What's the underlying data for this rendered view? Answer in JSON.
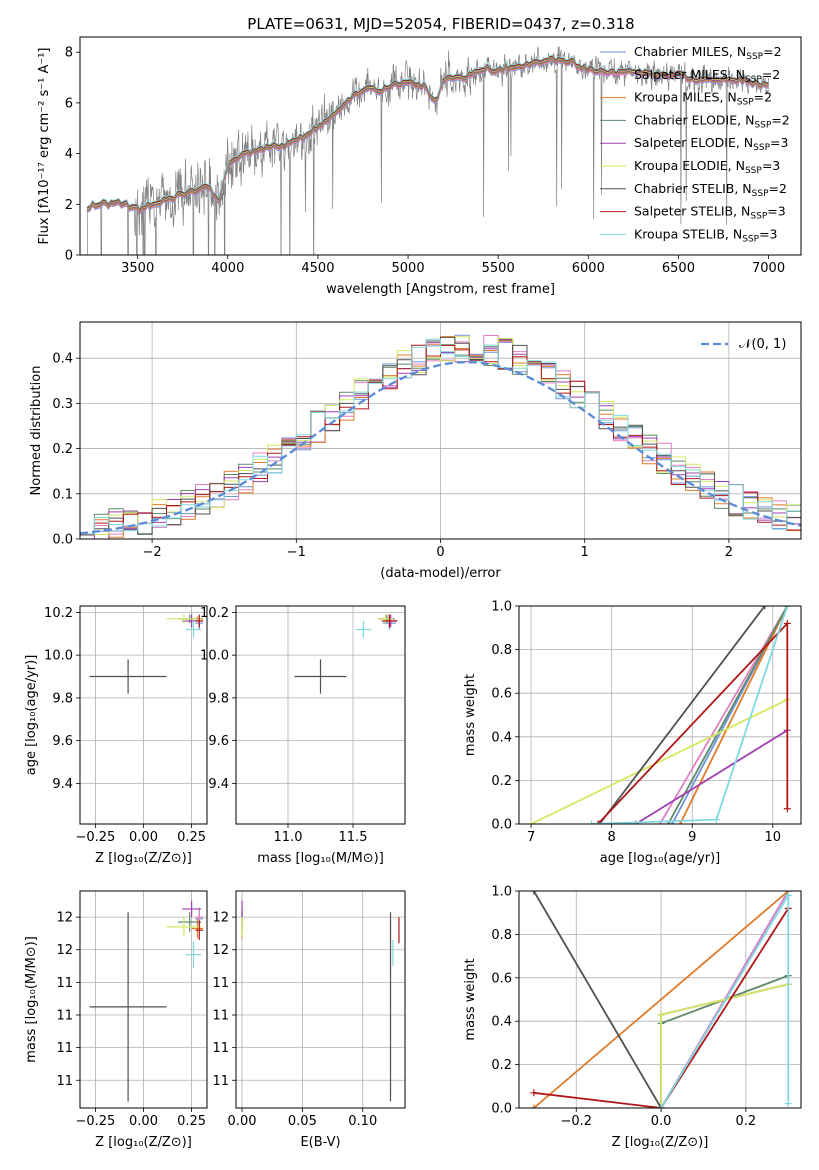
{
  "figure_title": "PLATE=0631, MJD=52054, FIBERID=0437, z=0.318",
  "chart_data": [
    {
      "id": "spectrum",
      "type": "line",
      "xlabel": "wavelength [Angstrom, rest frame]",
      "ylabel": "Flux [fλ10⁻¹⁷ erg cm⁻² s⁻¹ A⁻¹]",
      "xlim": [
        3180,
        7180
      ],
      "ylim": [
        0,
        8.6
      ],
      "xticks": [
        3500,
        4000,
        4500,
        5000,
        5500,
        6000,
        6500,
        7000
      ],
      "yticks": [
        0,
        2,
        4,
        6,
        8
      ],
      "grid": false,
      "legend_position": "top-right",
      "data_series": {
        "name": "data",
        "color": "#808080"
      },
      "model_series": [
        {
          "name": "Chabrier MILES, N_SSP=2",
          "label_main": "Chabrier MILES, N",
          "label_sub": "SSP",
          "label_end": "=2",
          "color": "#6f95d8"
        },
        {
          "name": "Salpeter MILES, N_SSP=2",
          "label_main": "Salpeter MILES, N",
          "label_sub": "SSP",
          "label_end": "=2",
          "color": "#e07fc4"
        },
        {
          "name": "Kroupa MILES, N_SSP=2",
          "label_main": "Kroupa MILES, N",
          "label_sub": "SSP",
          "label_end": "=2",
          "color": "#e07b2a"
        },
        {
          "name": "Chabrier ELODIE, N_SSP=2",
          "label_main": "Chabrier ELODIE, N",
          "label_sub": "SSP",
          "label_end": "=2",
          "color": "#5e8a6a"
        },
        {
          "name": "Salpeter ELODIE, N_SSP=3",
          "label_main": "Salpeter ELODIE, N",
          "label_sub": "SSP",
          "label_end": "=3",
          "color": "#a040b0"
        },
        {
          "name": "Kroupa ELODIE, N_SSP=3",
          "label_main": "Kroupa ELODIE, N",
          "label_sub": "SSP",
          "label_end": "=3",
          "color": "#d4e860"
        },
        {
          "name": "Chabrier STELIB, N_SSP=2",
          "label_main": "Chabrier STELIB, N",
          "label_sub": "SSP",
          "label_end": "=2",
          "color": "#505050"
        },
        {
          "name": "Salpeter STELIB, N_SSP=3",
          "label_main": "Salpeter STELIB, N",
          "label_sub": "SSP",
          "label_end": "=3",
          "color": "#b01818"
        },
        {
          "name": "Kroupa STELIB, N_SSP=3",
          "label_main": "Kroupa STELIB, N",
          "label_sub": "SSP",
          "label_end": "=3",
          "color": "#80d8e0"
        }
      ],
      "continuum_anchors": {
        "x": [
          3220,
          3260,
          3300,
          3400,
          3500,
          3600,
          3700,
          3800,
          3900,
          3950,
          4000,
          4100,
          4200,
          4300,
          4400,
          4500,
          4600,
          4700,
          4800,
          4850,
          4900,
          5000,
          5100,
          5150,
          5200,
          5300,
          5400,
          5500,
          5600,
          5700,
          5800,
          5900,
          6000,
          6100,
          6200,
          6300,
          6400,
          6500,
          6600,
          6700,
          6800,
          6900,
          7000
        ],
        "y": [
          1.9,
          1.95,
          2.0,
          2.05,
          1.8,
          2.0,
          2.3,
          2.5,
          2.6,
          2.2,
          3.6,
          4.0,
          4.2,
          4.3,
          4.6,
          5.0,
          5.6,
          6.3,
          6.6,
          6.4,
          6.7,
          6.8,
          6.6,
          6.0,
          7.0,
          7.0,
          7.3,
          7.3,
          7.4,
          7.6,
          7.7,
          7.6,
          7.3,
          7.2,
          7.2,
          7.2,
          7.1,
          7.1,
          6.9,
          6.9,
          6.9,
          6.8,
          6.7
        ]
      }
    },
    {
      "id": "residuals",
      "type": "histogram",
      "xlabel": "(data-model)/error",
      "ylabel": "Normed distribution",
      "xlim": [
        -2.5,
        2.5
      ],
      "ylim": [
        0,
        0.48
      ],
      "xticks": [
        -2,
        -1,
        0,
        1,
        2
      ],
      "xticklabels": [
        "−2",
        "−1",
        "0",
        "1",
        "2"
      ],
      "yticks": [
        0.0,
        0.1,
        0.2,
        0.3,
        0.4
      ],
      "grid": true,
      "legend_position": "top-right",
      "reference_curve": {
        "name": "N(0, 1)",
        "label": "𝒩(0, 1)",
        "color": "#5b8bd8",
        "style": "dashed",
        "mean": 0.18,
        "sigma": 1.02
      },
      "bin_width": 0.1,
      "bins_from": -2.5,
      "bins_to": 2.5
    },
    {
      "id": "age_vs_Z",
      "type": "scatter",
      "xlabel": "Z [log₁₀(Z/Z⊙)]",
      "ylabel": "age  [log₁₀(age/yr)]",
      "xlim": [
        -0.33,
        0.33
      ],
      "ylim": [
        9.21,
        10.23
      ],
      "xticks": [
        -0.25,
        0.0,
        0.25
      ],
      "xticklabels": [
        "−0.25",
        "0.00",
        "0.25"
      ],
      "yticks": [
        9.4,
        9.6,
        9.8,
        10.0,
        10.2
      ],
      "grid": true,
      "points": [
        {
          "x": 0.29,
          "y": 10.15,
          "xerr": 0.02,
          "yerr": 0.03,
          "color": "#6f95d8"
        },
        {
          "x": 0.29,
          "y": 10.16,
          "xerr": 0.02,
          "yerr": 0.02,
          "color": "#e07fc4"
        },
        {
          "x": 0.28,
          "y": 10.17,
          "xerr": 0.03,
          "yerr": 0.01,
          "color": "#e07b2a"
        },
        {
          "x": 0.24,
          "y": 10.17,
          "xerr": 0.06,
          "yerr": 0.02,
          "color": "#5e8a6a"
        },
        {
          "x": 0.25,
          "y": 10.16,
          "xerr": 0.05,
          "yerr": 0.03,
          "color": "#a040b0"
        },
        {
          "x": 0.21,
          "y": 10.17,
          "xerr": 0.09,
          "yerr": 0.02,
          "color": "#d4e860"
        },
        {
          "x": -0.08,
          "y": 9.9,
          "xerr": 0.2,
          "yerr": 0.08,
          "color": "#505050"
        },
        {
          "x": 0.29,
          "y": 10.16,
          "xerr": 0.02,
          "yerr": 0.03,
          "color": "#b01818"
        },
        {
          "x": 0.26,
          "y": 10.12,
          "xerr": 0.04,
          "yerr": 0.04,
          "color": "#80d8e0"
        }
      ]
    },
    {
      "id": "age_vs_mass",
      "type": "scatter",
      "xlabel": "mass [log₁₀(M/M⊙)]",
      "ylabel": "",
      "xlim": [
        10.6,
        11.9
      ],
      "ylim": [
        9.21,
        10.23
      ],
      "xticks": [
        11.0,
        11.5
      ],
      "xticklabels": [
        "11.0",
        "11.5"
      ],
      "yticks": [
        9.4,
        9.6,
        9.8,
        10.0,
        10.2
      ],
      "grid": true,
      "points": [
        {
          "x": 11.78,
          "y": 10.15,
          "xerr": 0.05,
          "yerr": 0.03,
          "color": "#6f95d8"
        },
        {
          "x": 11.79,
          "y": 10.16,
          "xerr": 0.05,
          "yerr": 0.02,
          "color": "#e07fc4"
        },
        {
          "x": 11.76,
          "y": 10.17,
          "xerr": 0.06,
          "yerr": 0.01,
          "color": "#e07b2a"
        },
        {
          "x": 11.76,
          "y": 10.17,
          "xerr": 0.06,
          "yerr": 0.02,
          "color": "#5e8a6a"
        },
        {
          "x": 11.79,
          "y": 10.16,
          "xerr": 0.05,
          "yerr": 0.03,
          "color": "#a040b0"
        },
        {
          "x": 11.75,
          "y": 10.17,
          "xerr": 0.06,
          "yerr": 0.02,
          "color": "#d4e860"
        },
        {
          "x": 11.25,
          "y": 9.9,
          "xerr": 0.2,
          "yerr": 0.08,
          "color": "#505050"
        },
        {
          "x": 11.78,
          "y": 10.16,
          "xerr": 0.06,
          "yerr": 0.03,
          "color": "#b01818"
        },
        {
          "x": 11.58,
          "y": 10.12,
          "xerr": 0.06,
          "yerr": 0.04,
          "color": "#80d8e0"
        }
      ]
    },
    {
      "id": "weight_vs_age",
      "type": "line",
      "xlabel": "age  [log₁₀(age/yr)]",
      "ylabel": "mass weight",
      "xlim": [
        6.85,
        10.35
      ],
      "ylim": [
        0,
        1
      ],
      "xticks": [
        7,
        8,
        9,
        10
      ],
      "yticks": [
        0.0,
        0.2,
        0.4,
        0.6,
        0.8,
        1.0
      ],
      "grid": true,
      "series": [
        {
          "color": "#6f95d8",
          "x": [
            8.75,
            10.18
          ],
          "y": [
            0.0,
            1.0
          ]
        },
        {
          "color": "#e07fc4",
          "x": [
            8.6,
            10.18
          ],
          "y": [
            0.0,
            1.0
          ]
        },
        {
          "color": "#e07b2a",
          "x": [
            8.85,
            10.18
          ],
          "y": [
            0.0,
            1.0
          ]
        },
        {
          "color": "#5e8a6a",
          "x": [
            8.7,
            10.18
          ],
          "y": [
            0.0,
            1.0
          ]
        },
        {
          "color": "#a040b0",
          "x": [
            8.3,
            10.18
          ],
          "y": [
            0.0,
            0.43
          ]
        },
        {
          "color": "#d4e860",
          "x": [
            7.0,
            10.18
          ],
          "y": [
            0.0,
            0.57
          ]
        },
        {
          "color": "#505050",
          "x": [
            7.85,
            9.9
          ],
          "y": [
            0.0,
            1.0
          ]
        },
        {
          "color": "#b01818",
          "x": [
            7.83,
            10.18,
            10.18
          ],
          "y": [
            0.0,
            0.92,
            0.07
          ]
        },
        {
          "color": "#80d8e0",
          "x": [
            7.75,
            9.3,
            10.18
          ],
          "y": [
            0.0,
            0.02,
            1.0
          ]
        }
      ]
    },
    {
      "id": "mass_vs_Z",
      "type": "scatter",
      "xlabel": "Z [log₁₀(Z/Z⊙)]",
      "ylabel": "mass [log₁₀(M/M⊙)]",
      "xlim": [
        -0.33,
        0.33
      ],
      "ylim": [
        10.63,
        11.96
      ],
      "xticks": [
        -0.25,
        0.0,
        0.25
      ],
      "xticklabels": [
        "−0.25",
        "0.00",
        "0.25"
      ],
      "yticks": [
        10.8,
        11.0,
        11.2,
        11.4,
        11.6,
        11.8
      ],
      "grid": true,
      "points": [
        {
          "x": 0.29,
          "y": 11.79,
          "xerr": 0.02,
          "yerr": 0.05,
          "color": "#6f95d8"
        },
        {
          "x": 0.29,
          "y": 11.8,
          "xerr": 0.02,
          "yerr": 0.06,
          "color": "#e07fc4"
        },
        {
          "x": 0.28,
          "y": 11.73,
          "xerr": 0.03,
          "yerr": 0.06,
          "color": "#e07b2a"
        },
        {
          "x": 0.24,
          "y": 11.77,
          "xerr": 0.06,
          "yerr": 0.06,
          "color": "#5e8a6a"
        },
        {
          "x": 0.25,
          "y": 11.85,
          "xerr": 0.05,
          "yerr": 0.05,
          "color": "#a040b0"
        },
        {
          "x": 0.21,
          "y": 11.74,
          "xerr": 0.09,
          "yerr": 0.06,
          "color": "#d4e860"
        },
        {
          "x": -0.08,
          "y": 11.25,
          "xerr": 0.2,
          "yerr": 0.58,
          "color": "#505050"
        },
        {
          "x": 0.29,
          "y": 11.72,
          "xerr": 0.02,
          "yerr": 0.06,
          "color": "#b01818"
        },
        {
          "x": 0.26,
          "y": 11.57,
          "xerr": 0.04,
          "yerr": 0.08,
          "color": "#80d8e0"
        }
      ]
    },
    {
      "id": "mass_vs_ebv",
      "type": "scatter",
      "xlabel": "E(B-V)",
      "ylabel": "",
      "xlim": [
        -0.005,
        0.135
      ],
      "ylim": [
        10.63,
        11.96
      ],
      "xticks": [
        0.0,
        0.05,
        0.1
      ],
      "xticklabels": [
        "0.00",
        "0.05",
        "0.10"
      ],
      "yticks": [
        10.8,
        11.0,
        11.2,
        11.4,
        11.6,
        11.8
      ],
      "grid": true,
      "points": [
        {
          "x": 0.0,
          "y": 11.79,
          "xerr": 0.0,
          "yerr": 0.05,
          "color": "#6f95d8"
        },
        {
          "x": 0.0,
          "y": 11.8,
          "xerr": 0.0,
          "yerr": 0.06,
          "color": "#e07fc4"
        },
        {
          "x": 0.0,
          "y": 11.73,
          "xerr": 0.0,
          "yerr": 0.06,
          "color": "#e07b2a"
        },
        {
          "x": 0.0,
          "y": 11.77,
          "xerr": 0.0,
          "yerr": 0.06,
          "color": "#5e8a6a"
        },
        {
          "x": 0.0,
          "y": 11.85,
          "xerr": 0.0,
          "yerr": 0.05,
          "color": "#a040b0"
        },
        {
          "x": 0.0,
          "y": 11.74,
          "xerr": 0.0,
          "yerr": 0.06,
          "color": "#d4e860"
        },
        {
          "x": 0.123,
          "y": 11.25,
          "xerr": 0.0,
          "yerr": 0.58,
          "color": "#505050"
        },
        {
          "x": 0.13,
          "y": 11.72,
          "xerr": 0.0,
          "yerr": 0.08,
          "color": "#b01818"
        },
        {
          "x": 0.125,
          "y": 11.58,
          "xerr": 0.0,
          "yerr": 0.08,
          "color": "#80d8e0"
        }
      ]
    },
    {
      "id": "weight_vs_Z",
      "type": "line",
      "xlabel": "Z [log₁₀(Z/Z⊙)]",
      "ylabel": "mass weight",
      "xlim": [
        -0.335,
        0.33
      ],
      "ylim": [
        0,
        1
      ],
      "xticks": [
        -0.2,
        0.0,
        0.2
      ],
      "xticklabels": [
        "−0.2",
        "0.0",
        "0.2"
      ],
      "yticks": [
        0.0,
        0.2,
        0.4,
        0.6,
        0.8,
        1.0
      ],
      "grid": true,
      "series": [
        {
          "color": "#6f95d8",
          "x": [
            0.0,
            0.3
          ],
          "y": [
            0.0,
            1.0
          ]
        },
        {
          "color": "#e07fc4",
          "x": [
            0.0,
            0.3
          ],
          "y": [
            0.0,
            1.0
          ]
        },
        {
          "color": "#e07b2a",
          "x": [
            -0.3,
            0.3
          ],
          "y": [
            0.0,
            1.0
          ]
        },
        {
          "color": "#5e8a6a",
          "x": [
            0.0,
            0.0,
            0.3
          ],
          "y": [
            0.0,
            0.39,
            0.61
          ]
        },
        {
          "color": "#a040b0",
          "x": [
            0.0,
            0.0,
            0.3
          ],
          "y": [
            0.0,
            0.43,
            0.57
          ]
        },
        {
          "color": "#d4e860",
          "x": [
            0.0,
            0.0,
            0.3
          ],
          "y": [
            0.0,
            0.43,
            0.57
          ]
        },
        {
          "color": "#505050",
          "x": [
            -0.3,
            0.0
          ],
          "y": [
            1.0,
            0.0
          ]
        },
        {
          "color": "#b01818",
          "x": [
            -0.3,
            0.0,
            0.3
          ],
          "y": [
            0.07,
            0.0,
            0.92
          ]
        },
        {
          "color": "#80d8e0",
          "x": [
            0.0,
            0.3,
            0.3
          ],
          "y": [
            0.0,
            0.98,
            0.02
          ]
        }
      ]
    }
  ]
}
